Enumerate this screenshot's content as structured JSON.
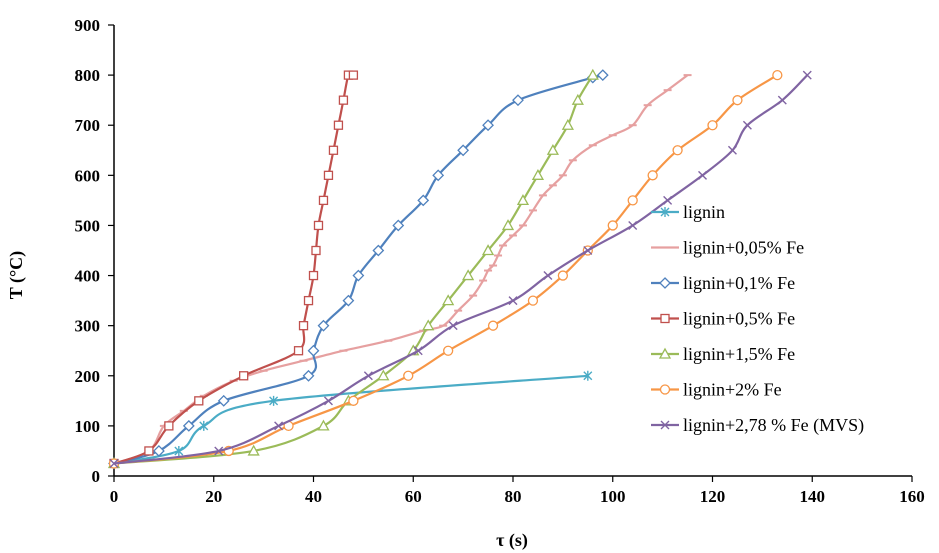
{
  "chart_data": {
    "type": "line",
    "xlabel": "τ (s)",
    "ylabel": "T (°C)",
    "xlim": [
      0,
      160
    ],
    "ylim": [
      0,
      900
    ],
    "xticks": [
      0,
      20,
      40,
      60,
      80,
      100,
      120,
      140,
      160
    ],
    "yticks": [
      0,
      100,
      200,
      300,
      400,
      500,
      600,
      700,
      800,
      900
    ],
    "grid": false,
    "legend_position": "right",
    "series": [
      {
        "name": "lignin",
        "color": "#4bacc6",
        "marker": "star",
        "x": [
          0,
          13,
          18,
          32,
          95
        ],
        "y": [
          25,
          50,
          100,
          150,
          200
        ]
      },
      {
        "name": "lignin+0,05% Fe",
        "color": "#e6a0a0",
        "marker": "dash",
        "x": [
          0,
          7,
          10,
          14,
          18,
          24,
          30,
          38,
          46,
          55,
          62,
          66,
          69,
          72,
          74,
          75,
          76,
          77,
          78,
          80,
          82,
          84,
          86,
          88,
          90,
          92,
          96,
          100,
          104,
          107,
          111,
          115
        ],
        "y": [
          25,
          50,
          100,
          130,
          160,
          190,
          210,
          230,
          250,
          270,
          290,
          300,
          330,
          360,
          390,
          410,
          420,
          440,
          460,
          480,
          500,
          530,
          560,
          580,
          600,
          630,
          660,
          680,
          700,
          740,
          770,
          800
        ]
      },
      {
        "name": "lignin+0,1% Fe",
        "color": "#4f81bd",
        "marker": "diamond",
        "x": [
          0,
          9,
          15,
          22,
          39,
          40,
          42,
          47,
          49,
          53,
          57,
          62,
          65,
          70,
          75,
          81,
          96,
          98
        ],
        "y": [
          25,
          50,
          100,
          150,
          200,
          250,
          300,
          350,
          400,
          450,
          500,
          550,
          600,
          650,
          700,
          750,
          795,
          800
        ]
      },
      {
        "name": "lignin+0,5% Fe",
        "color": "#c0504d",
        "marker": "square",
        "x": [
          0,
          7,
          11,
          17,
          26,
          37,
          38,
          39,
          40,
          40.5,
          41,
          42,
          43,
          44,
          45,
          46,
          47,
          48
        ],
        "y": [
          25,
          50,
          100,
          150,
          200,
          250,
          300,
          350,
          400,
          450,
          500,
          550,
          600,
          650,
          700,
          750,
          800,
          800
        ]
      },
      {
        "name": "lignin+1,5% Fe",
        "color": "#9bbb59",
        "marker": "triangle",
        "x": [
          0,
          28,
          42,
          47,
          54,
          60,
          63,
          67,
          71,
          75,
          79,
          82,
          85,
          88,
          91,
          93,
          96
        ],
        "y": [
          25,
          50,
          100,
          150,
          200,
          250,
          300,
          350,
          400,
          450,
          500,
          550,
          600,
          650,
          700,
          750,
          800
        ]
      },
      {
        "name": "lignin+2% Fe",
        "color": "#f79646",
        "marker": "circle",
        "x": [
          0,
          23,
          35,
          48,
          59,
          67,
          76,
          84,
          90,
          95,
          100,
          104,
          108,
          113,
          120,
          125,
          133
        ],
        "y": [
          25,
          50,
          100,
          150,
          200,
          250,
          300,
          350,
          400,
          450,
          500,
          550,
          600,
          650,
          700,
          750,
          800
        ]
      },
      {
        "name": "lignin+2,78 % Fe (MVS)",
        "color": "#8064a2",
        "marker": "x",
        "x": [
          0,
          21,
          33,
          43,
          51,
          61,
          68,
          80,
          87,
          95,
          104,
          111,
          118,
          124,
          127,
          134,
          139
        ],
        "y": [
          25,
          50,
          100,
          150,
          200,
          250,
          300,
          350,
          400,
          450,
          500,
          550,
          600,
          650,
          700,
          750,
          800
        ]
      }
    ]
  }
}
